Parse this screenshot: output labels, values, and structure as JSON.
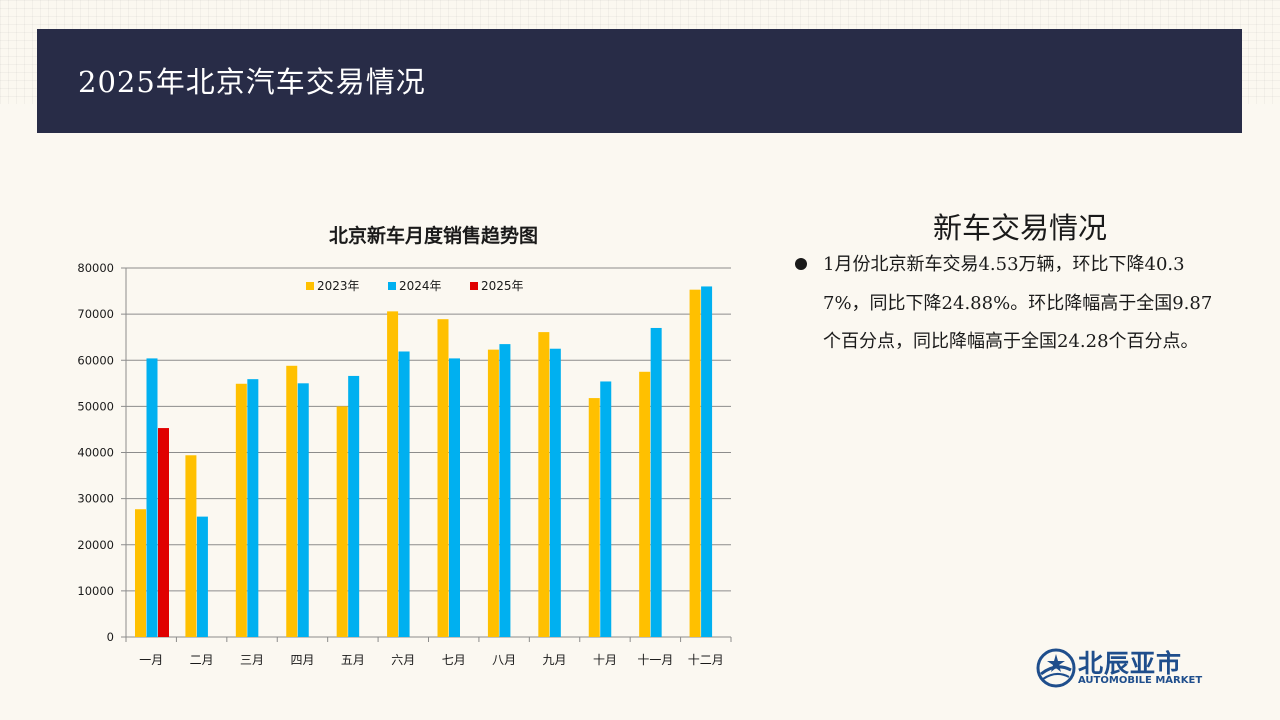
{
  "header": {
    "title": "2025年北京汽车交易情况"
  },
  "side": {
    "title": "新车交易情况",
    "text": "1月份北京新车交易4.53万辆，环比下降40.37%，同比下降24.88%。环比降幅高于全国9.87个百分点，同比降幅高于全国24.28个百分点。"
  },
  "logo": {
    "cn": "北辰亚市",
    "en": "AUTOMOBILE MARKET",
    "icon": "globe-star-logo-icon"
  },
  "colors": {
    "header_bg": "#282c47",
    "s2023": "#ffc000",
    "s2024": "#00b0f0",
    "s2025": "#e00000"
  },
  "chart_data": {
    "type": "bar",
    "title": "北京新车月度销售趋势图",
    "categories": [
      "一月",
      "二月",
      "三月",
      "四月",
      "五月",
      "六月",
      "七月",
      "八月",
      "九月",
      "十月",
      "十一月",
      "十二月"
    ],
    "series": [
      {
        "name": "2023年",
        "color": "#ffc000",
        "values": [
          27700,
          39400,
          54900,
          58800,
          50000,
          70600,
          68900,
          62300,
          66100,
          51800,
          57500,
          75300
        ]
      },
      {
        "name": "2024年",
        "color": "#00b0f0",
        "values": [
          60400,
          26100,
          55900,
          55000,
          56600,
          61900,
          60400,
          63500,
          62500,
          55400,
          67000,
          76000
        ]
      },
      {
        "name": "2025年",
        "color": "#e00000",
        "values": [
          45300,
          null,
          null,
          null,
          null,
          null,
          null,
          null,
          null,
          null,
          null,
          null
        ]
      }
    ],
    "ylim": [
      0,
      80000
    ],
    "yticks": [
      0,
      10000,
      20000,
      30000,
      40000,
      50000,
      60000,
      70000,
      80000
    ],
    "grid": true,
    "legend": "top"
  }
}
